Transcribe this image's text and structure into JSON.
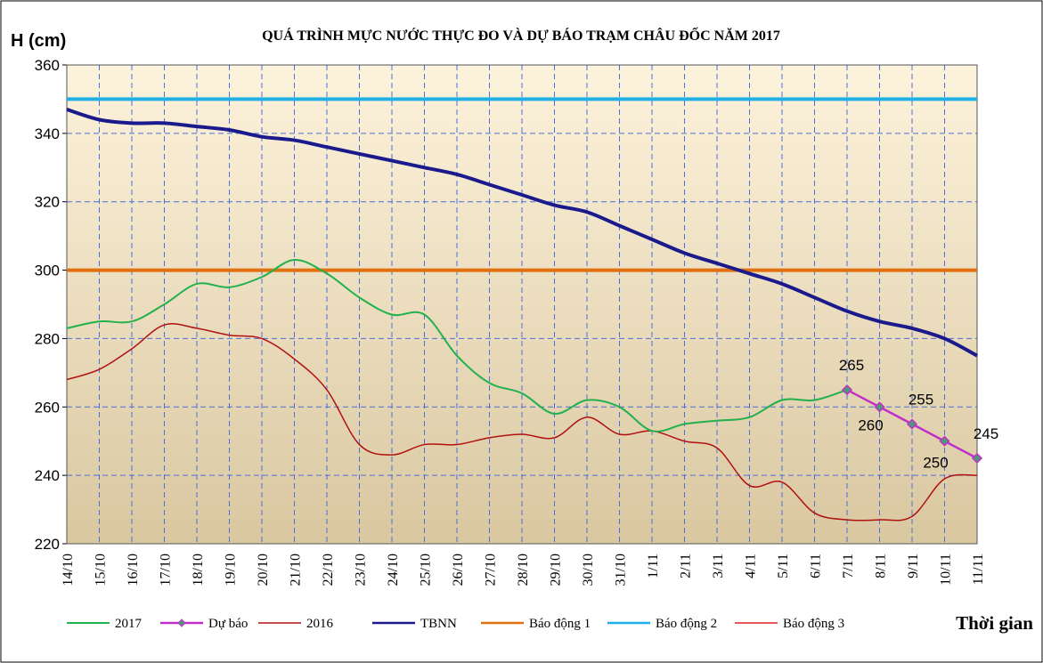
{
  "chart_data": {
    "type": "line",
    "title": "QUÁ TRÌNH MỰC NƯỚC THỰC ĐO VÀ DỰ BÁO TRẠM CHÂU ĐỐC NĂM 2017",
    "y_label": "H (cm)",
    "x_label": "Thời gian",
    "categories": [
      "14/10",
      "15/10",
      "16/10",
      "17/10",
      "18/10",
      "19/10",
      "20/10",
      "21/10",
      "22/10",
      "23/10",
      "24/10",
      "25/10",
      "26/10",
      "27/10",
      "28/10",
      "29/10",
      "30/10",
      "31/10",
      "1/11",
      "2/11",
      "3/11",
      "4/11",
      "5/11",
      "6/11",
      "7/11",
      "8/11",
      "9/11",
      "10/11",
      "11/11"
    ],
    "ylim": [
      220,
      360
    ],
    "yticks": [
      220,
      240,
      260,
      280,
      300,
      320,
      340,
      360
    ],
    "grid": true,
    "series": [
      {
        "name": "2017",
        "color": "#22b14c",
        "width": 2,
        "values": [
          283,
          285,
          285,
          290,
          296,
          295,
          298,
          303,
          299,
          292,
          287,
          287,
          275,
          267,
          264,
          258,
          262,
          260,
          253,
          255,
          256,
          257,
          262,
          262,
          265,
          null,
          null,
          null,
          null
        ]
      },
      {
        "name": "Dự báo",
        "color": "#c030c8",
        "width": 2.5,
        "marker": true,
        "data_labels": true,
        "values": [
          null,
          null,
          null,
          null,
          null,
          null,
          null,
          null,
          null,
          null,
          null,
          null,
          null,
          null,
          null,
          null,
          null,
          null,
          null,
          null,
          null,
          null,
          null,
          null,
          265,
          260,
          255,
          250,
          245
        ]
      },
      {
        "name": "2016",
        "color": "#b01010",
        "width": 1.5,
        "values": [
          268,
          271,
          277,
          284,
          283,
          281,
          280,
          274,
          265,
          249,
          246,
          249,
          249,
          251,
          252,
          251,
          257,
          252,
          253,
          250,
          248,
          237,
          238,
          229,
          227,
          227,
          228,
          239,
          240
        ]
      },
      {
        "name": "TBNN",
        "color": "#1a1a8c",
        "width": 4,
        "values": [
          347,
          344,
          343,
          343,
          342,
          341,
          339,
          338,
          336,
          334,
          332,
          330,
          328,
          325,
          322,
          319,
          317,
          313,
          309,
          305,
          302,
          299,
          296,
          292,
          288,
          285,
          283,
          280,
          275
        ]
      },
      {
        "name": "Báo động 1",
        "color": "#e07010",
        "width": 4,
        "values": [
          300,
          300,
          300,
          300,
          300,
          300,
          300,
          300,
          300,
          300,
          300,
          300,
          300,
          300,
          300,
          300,
          300,
          300,
          300,
          300,
          300,
          300,
          300,
          300,
          300,
          300,
          300,
          300,
          300
        ]
      },
      {
        "name": "Báo động 2",
        "color": "#20b0e8",
        "width": 4,
        "values": [
          350,
          350,
          350,
          350,
          350,
          350,
          350,
          350,
          350,
          350,
          350,
          350,
          350,
          350,
          350,
          350,
          350,
          350,
          350,
          350,
          350,
          350,
          350,
          350,
          350,
          350,
          350,
          350,
          350
        ]
      },
      {
        "name": "Báo động 3",
        "color": "#e02020",
        "width": 1.5
      }
    ]
  }
}
